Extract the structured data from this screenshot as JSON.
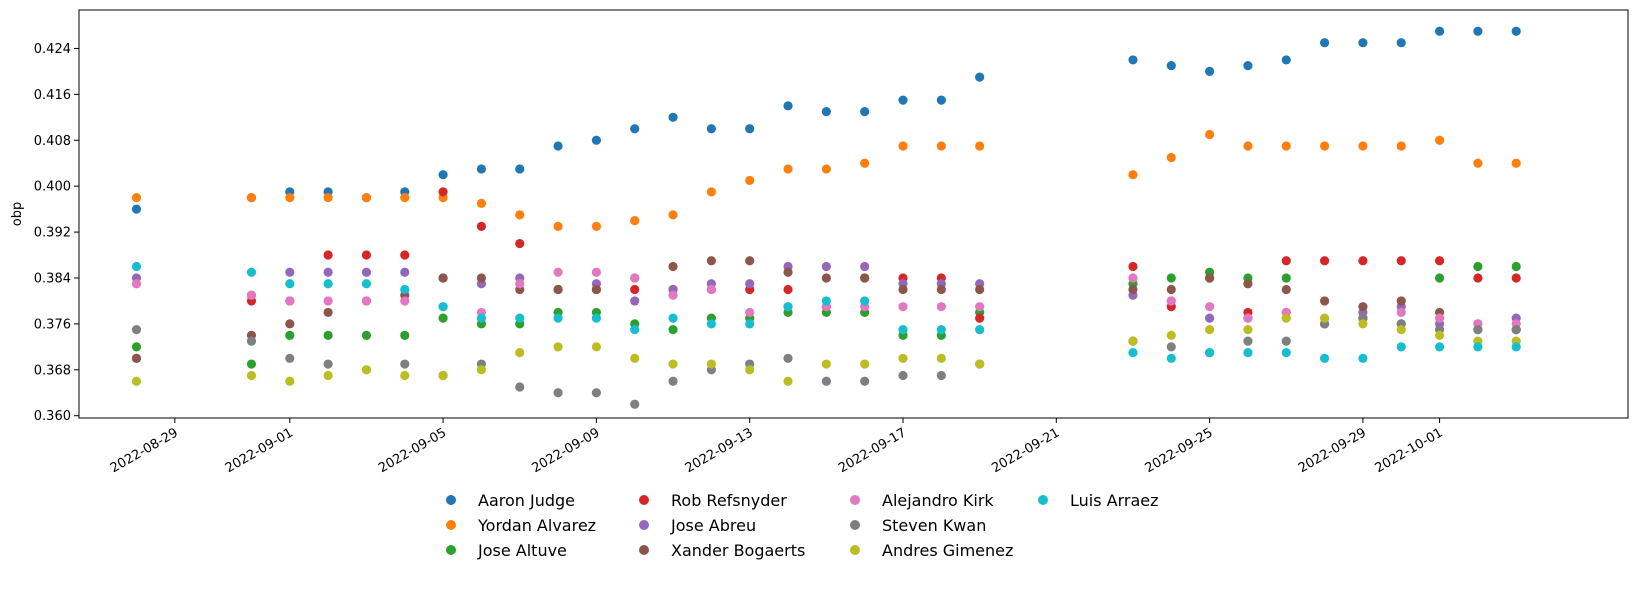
{
  "chart_data": {
    "type": "scatter",
    "title": "",
    "xlabel": "",
    "ylabel": "obp",
    "x_type": "date",
    "x_ticks": [
      "2022-08-29",
      "2022-09-01",
      "2022-09-05",
      "2022-09-09",
      "2022-09-13",
      "2022-09-17",
      "2022-09-21",
      "2022-09-25",
      "2022-09-29",
      "2022-10-01"
    ],
    "y_ticks": [
      0.36,
      0.368,
      0.376,
      0.384,
      0.392,
      0.4,
      0.408,
      0.416,
      0.424
    ],
    "y_tick_labels": [
      "0.360",
      "0.368",
      "0.376",
      "0.384",
      "0.392",
      "0.400",
      "0.408",
      "0.416",
      "0.424"
    ],
    "ylim": [
      0.3596,
      0.4307
    ],
    "xlim": [
      "2022-08-26T12:00",
      "2022-10-05T22:00"
    ],
    "grid": false,
    "legend": {
      "placement": "bottom-center",
      "columns": 4
    },
    "x": [
      "2022-08-28",
      "2022-08-31",
      "2022-09-01",
      "2022-09-02",
      "2022-09-03",
      "2022-09-04",
      "2022-09-05",
      "2022-09-06",
      "2022-09-07",
      "2022-09-08",
      "2022-09-09",
      "2022-09-10",
      "2022-09-11",
      "2022-09-12",
      "2022-09-13",
      "2022-09-14",
      "2022-09-15",
      "2022-09-16",
      "2022-09-17",
      "2022-09-18",
      "2022-09-19",
      "2022-09-23",
      "2022-09-24",
      "2022-09-25",
      "2022-09-26",
      "2022-09-27",
      "2022-09-28",
      "2022-09-29",
      "2022-09-30",
      "2022-10-01",
      "2022-10-02",
      "2022-10-03"
    ],
    "series": [
      {
        "name": "Aaron Judge",
        "color": "#1f77b4",
        "values": [
          0.396,
          0.398,
          0.399,
          0.399,
          0.398,
          0.399,
          0.402,
          0.403,
          0.403,
          0.407,
          0.408,
          0.41,
          0.412,
          0.41,
          0.41,
          0.414,
          0.413,
          0.413,
          0.415,
          0.415,
          0.419,
          0.422,
          0.421,
          0.42,
          0.421,
          0.422,
          0.425,
          0.425,
          0.425,
          0.427,
          0.427,
          0.427
        ]
      },
      {
        "name": "Yordan Alvarez",
        "color": "#ff7f0e",
        "values": [
          0.398,
          0.398,
          0.398,
          0.398,
          0.398,
          0.398,
          0.398,
          0.397,
          0.395,
          0.393,
          0.393,
          0.394,
          0.395,
          0.399,
          0.401,
          0.403,
          0.403,
          0.404,
          0.407,
          0.407,
          0.407,
          0.402,
          0.405,
          0.409,
          0.407,
          0.407,
          0.407,
          0.407,
          0.407,
          0.408,
          0.404,
          0.404
        ]
      },
      {
        "name": "Jose Altuve",
        "color": "#2ca02c",
        "values": [
          0.372,
          0.369,
          0.374,
          0.374,
          0.374,
          0.374,
          0.377,
          0.376,
          0.376,
          0.378,
          0.378,
          0.376,
          0.375,
          0.377,
          0.377,
          0.378,
          0.378,
          0.378,
          0.374,
          0.374,
          0.378,
          0.383,
          0.384,
          0.385,
          0.384,
          0.384,
          0.376,
          0.377,
          0.376,
          0.384,
          0.386,
          0.386
        ]
      },
      {
        "name": "Rob Refsnyder",
        "color": "#d62728",
        "values": [
          0.37,
          0.38,
          0.38,
          0.388,
          0.388,
          0.388,
          0.399,
          0.393,
          0.39,
          0.382,
          0.382,
          0.382,
          0.382,
          0.382,
          0.382,
          0.382,
          0.379,
          0.384,
          0.384,
          0.384,
          0.377,
          0.386,
          0.379,
          0.384,
          0.378,
          0.387,
          0.387,
          0.387,
          0.387,
          0.387,
          0.384,
          0.384
        ]
      },
      {
        "name": "Jose Abreu",
        "color": "#9467bd",
        "values": [
          0.384,
          0.381,
          0.385,
          0.385,
          0.385,
          0.385,
          0.384,
          0.383,
          0.384,
          0.382,
          0.383,
          0.38,
          0.382,
          0.383,
          0.383,
          0.386,
          0.386,
          0.386,
          0.383,
          0.383,
          0.383,
          0.381,
          0.38,
          0.377,
          0.377,
          0.378,
          0.376,
          0.378,
          0.379,
          0.376,
          0.376,
          0.377
        ]
      },
      {
        "name": "Xander Bogaerts",
        "color": "#8c564b",
        "values": [
          0.37,
          0.374,
          0.376,
          0.378,
          0.38,
          0.381,
          0.384,
          0.384,
          0.382,
          0.382,
          0.382,
          0.384,
          0.386,
          0.387,
          0.387,
          0.385,
          0.384,
          0.384,
          0.382,
          0.382,
          0.382,
          0.382,
          0.382,
          0.384,
          0.383,
          0.382,
          0.38,
          0.379,
          0.38,
          0.378,
          0.375,
          0.375
        ]
      },
      {
        "name": "Alejandro Kirk",
        "color": "#e377c2",
        "values": [
          0.383,
          0.381,
          0.38,
          0.38,
          0.38,
          0.38,
          0.379,
          0.378,
          0.383,
          0.385,
          0.385,
          0.384,
          0.381,
          0.382,
          0.378,
          0.379,
          0.379,
          0.379,
          0.379,
          0.379,
          0.379,
          0.384,
          0.38,
          0.379,
          0.377,
          0.378,
          0.376,
          0.377,
          0.378,
          0.377,
          0.376,
          0.376
        ]
      },
      {
        "name": "Steven Kwan",
        "color": "#7f7f7f",
        "values": [
          0.375,
          0.373,
          0.37,
          0.369,
          0.368,
          0.369,
          0.367,
          0.369,
          0.365,
          0.364,
          0.364,
          0.362,
          0.366,
          0.368,
          0.369,
          0.37,
          0.366,
          0.366,
          0.367,
          0.367,
          0.369,
          0.373,
          0.372,
          0.371,
          0.373,
          0.373,
          0.376,
          0.377,
          0.376,
          0.375,
          0.375,
          0.375
        ]
      },
      {
        "name": "Andres Gimenez",
        "color": "#bcbd22",
        "values": [
          0.366,
          0.367,
          0.366,
          0.367,
          0.368,
          0.367,
          0.367,
          0.368,
          0.371,
          0.372,
          0.372,
          0.37,
          0.369,
          0.369,
          0.368,
          0.366,
          0.369,
          0.369,
          0.37,
          0.37,
          0.369,
          0.373,
          0.374,
          0.375,
          0.375,
          0.377,
          0.377,
          0.376,
          0.375,
          0.374,
          0.373,
          0.373
        ]
      },
      {
        "name": "Luis Arraez",
        "color": "#17becf",
        "values": [
          0.386,
          0.385,
          0.383,
          0.383,
          0.383,
          0.382,
          0.379,
          0.377,
          0.377,
          0.377,
          0.377,
          0.375,
          0.377,
          0.376,
          0.376,
          0.379,
          0.38,
          0.38,
          0.375,
          0.375,
          0.375,
          0.371,
          0.37,
          0.371,
          0.371,
          0.371,
          0.37,
          0.37,
          0.372,
          0.372,
          0.372,
          0.372
        ]
      }
    ]
  }
}
